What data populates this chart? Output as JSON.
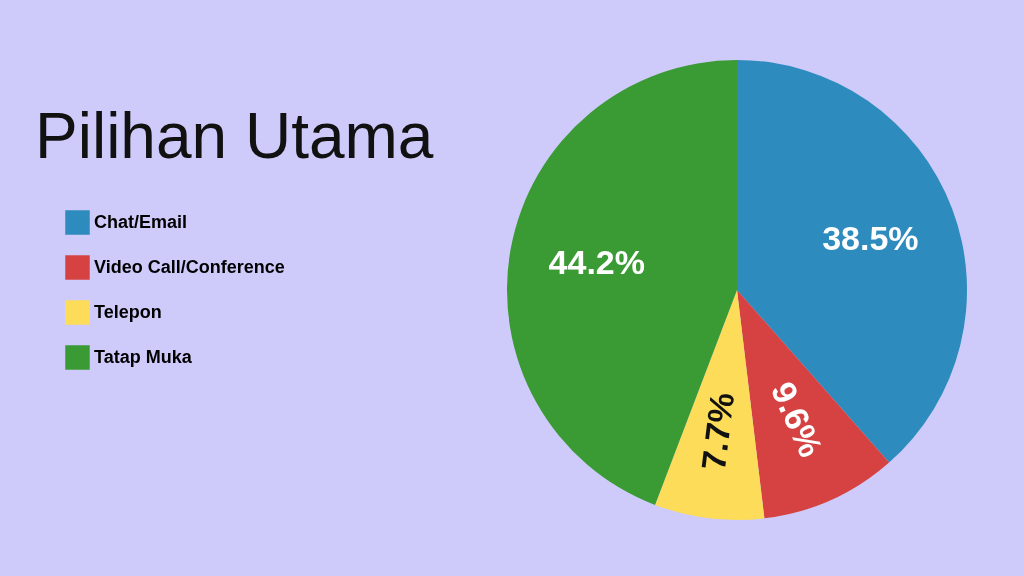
{
  "chart_data": {
    "type": "pie",
    "title": "Pilihan Utama",
    "categories": [
      "Chat/Email",
      "Video Call/Conference",
      "Telepon",
      "Tatap Muka"
    ],
    "values": [
      38.5,
      9.6,
      7.7,
      44.2
    ],
    "colors": [
      "#2e8bbd",
      "#d64141",
      "#fcdc58",
      "#3a9a33"
    ],
    "value_labels": [
      "38.5%",
      "9.6%",
      "7.7%",
      "44.2%"
    ],
    "legend": "left"
  }
}
